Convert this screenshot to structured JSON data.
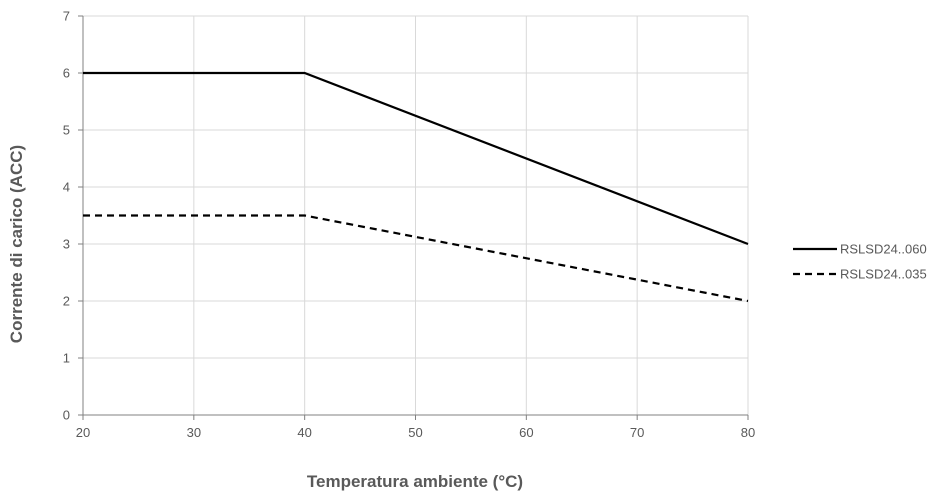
{
  "chart_data": {
    "type": "line",
    "xlabel": "Temperatura ambiente (°C)",
    "ylabel": "Corrente di carico (ACC)",
    "xlim": [
      20,
      80
    ],
    "ylim": [
      0,
      7
    ],
    "xticks": [
      20,
      30,
      40,
      50,
      60,
      70,
      80
    ],
    "yticks": [
      0,
      1,
      2,
      3,
      4,
      5,
      6,
      7
    ],
    "grid": true,
    "legend_position": "right",
    "series": [
      {
        "name": "RSLSD24..060",
        "style": "solid",
        "color": "#000000",
        "x": [
          20,
          40,
          80
        ],
        "y": [
          6,
          6,
          3
        ]
      },
      {
        "name": "RSLSD24..035",
        "style": "dashed",
        "color": "#000000",
        "x": [
          20,
          40,
          80
        ],
        "y": [
          3.5,
          3.5,
          2
        ]
      }
    ]
  }
}
